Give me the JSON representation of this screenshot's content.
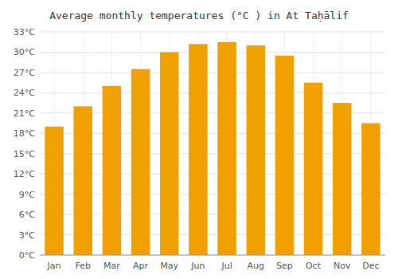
{
  "chart_data": {
    "type": "bar",
    "title": "Average monthly temperatures (°C ) in At Taḥālif",
    "categories": [
      "Jan",
      "Feb",
      "Mar",
      "Apr",
      "May",
      "Jun",
      "Jul",
      "Aug",
      "Sep",
      "Oct",
      "Nov",
      "Dec"
    ],
    "values": [
      19.0,
      22.0,
      25.0,
      27.5,
      30.0,
      31.2,
      31.5,
      31.0,
      29.5,
      25.5,
      22.5,
      19.5
    ],
    "color": "#F0A000",
    "ylim": [
      0,
      33
    ],
    "yticks": [
      {
        "value": 0,
        "label": "0°C"
      },
      {
        "value": 3,
        "label": "3°C"
      },
      {
        "value": 6,
        "label": "6°C"
      },
      {
        "value": 9,
        "label": "9°C"
      },
      {
        "value": 12,
        "label": "12°C"
      },
      {
        "value": 15,
        "label": "15°C"
      },
      {
        "value": 18,
        "label": "18°C"
      },
      {
        "value": 21,
        "label": "21°C"
      },
      {
        "value": 24,
        "label": "24°C"
      },
      {
        "value": 27,
        "label": "27°C"
      },
      {
        "value": 30,
        "label": "30°C"
      },
      {
        "value": 33,
        "label": "33°C"
      }
    ],
    "grid": true
  }
}
